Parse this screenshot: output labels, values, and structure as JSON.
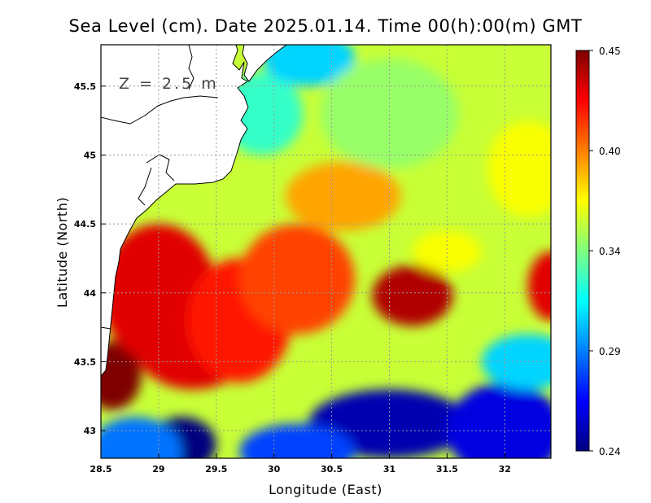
{
  "chart_data": {
    "type": "heatmap",
    "title": "Sea Level (cm). Date 2025.01.14. Time 00(h):00(m) GMT",
    "xlabel": "Longitude (East)",
    "ylabel": "Latitude (North)",
    "xlim": [
      28.5,
      32.4
    ],
    "ylim": [
      42.8,
      45.8
    ],
    "x_ticks": [
      28.5,
      29,
      29.5,
      30,
      30.5,
      31,
      31.5,
      32
    ],
    "x_tick_labels": [
      "28.5",
      "29",
      "29.5",
      "30",
      "30.5",
      "31",
      "31.5",
      "32"
    ],
    "y_ticks": [
      43,
      43.5,
      44,
      44.5,
      45,
      45.5
    ],
    "y_tick_labels": [
      "43",
      "43.5",
      "44",
      "44.5",
      "45",
      "45.5"
    ],
    "grid": true,
    "annotation": "Z = 2.5 m",
    "colorbar": {
      "min": 0.24,
      "max": 0.45,
      "ticks": [
        0.45,
        0.4,
        0.34,
        0.29,
        0.24
      ],
      "tick_labels": [
        "0.45",
        "0.40",
        "0.34",
        "0.29",
        "0.24"
      ],
      "colors": [
        "#00007f",
        "#0000ff",
        "#007fff",
        "#00ffff",
        "#7fff7f",
        "#ffff00",
        "#ff7f00",
        "#ff0000",
        "#7f0000"
      ]
    },
    "field": {
      "background": 0.36,
      "features": [
        {
          "lon": 28.6,
          "lat": 43.4,
          "value": 0.45,
          "rx": 0.25,
          "ry": 0.25
        },
        {
          "lon": 29.0,
          "lat": 44.0,
          "value": 0.43,
          "rx": 0.5,
          "ry": 0.5
        },
        {
          "lon": 29.3,
          "lat": 43.6,
          "value": 0.43,
          "rx": 0.5,
          "ry": 0.3
        },
        {
          "lon": 29.7,
          "lat": 43.8,
          "value": 0.42,
          "rx": 0.45,
          "ry": 0.45
        },
        {
          "lon": 30.2,
          "lat": 44.1,
          "value": 0.41,
          "rx": 0.5,
          "ry": 0.4
        },
        {
          "lon": 31.2,
          "lat": 43.98,
          "value": 0.44,
          "rx": 0.35,
          "ry": 0.22
        },
        {
          "lon": 32.4,
          "lat": 44.05,
          "value": 0.43,
          "rx": 0.2,
          "ry": 0.25
        },
        {
          "lon": 30.6,
          "lat": 44.7,
          "value": 0.39,
          "rx": 0.5,
          "ry": 0.25
        },
        {
          "lon": 29.9,
          "lat": 45.3,
          "value": 0.33,
          "rx": 0.35,
          "ry": 0.3
        },
        {
          "lon": 30.3,
          "lat": 45.7,
          "value": 0.31,
          "rx": 0.4,
          "ry": 0.2
        },
        {
          "lon": 31.0,
          "lat": 45.3,
          "value": 0.35,
          "rx": 0.6,
          "ry": 0.4
        },
        {
          "lon": 32.2,
          "lat": 44.9,
          "value": 0.37,
          "rx": 0.35,
          "ry": 0.35
        },
        {
          "lon": 31.5,
          "lat": 44.3,
          "value": 0.37,
          "rx": 0.3,
          "ry": 0.15
        },
        {
          "lon": 29.2,
          "lat": 42.9,
          "value": 0.24,
          "rx": 0.3,
          "ry": 0.2
        },
        {
          "lon": 28.8,
          "lat": 42.85,
          "value": 0.29,
          "rx": 0.4,
          "ry": 0.25
        },
        {
          "lon": 31.0,
          "lat": 43.05,
          "value": 0.25,
          "rx": 0.7,
          "ry": 0.25
        },
        {
          "lon": 32.0,
          "lat": 43.0,
          "value": 0.26,
          "rx": 0.5,
          "ry": 0.35
        },
        {
          "lon": 30.2,
          "lat": 42.85,
          "value": 0.28,
          "rx": 0.5,
          "ry": 0.2
        },
        {
          "lon": 32.2,
          "lat": 43.5,
          "value": 0.31,
          "rx": 0.4,
          "ry": 0.2
        }
      ]
    }
  }
}
